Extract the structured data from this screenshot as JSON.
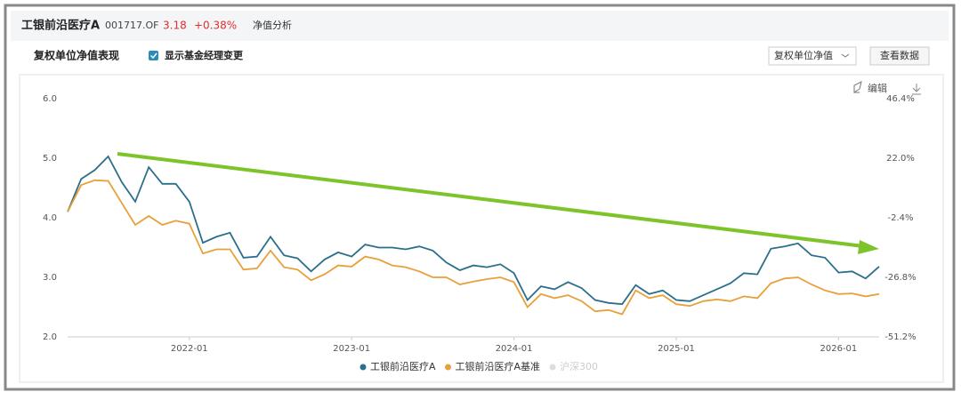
{
  "header": {
    "fund_name": "工银前沿医疗A",
    "code": "001717.OF",
    "nav": "3.18",
    "change": "+0.38%",
    "tab": "净值分析"
  },
  "toolbar": {
    "section_title": "复权单位净值表现",
    "checkbox_label": "显示基金经理变更",
    "dropdown": "复权单位净值",
    "button": "查看数据",
    "edit": "编辑"
  },
  "chart_data": {
    "type": "line",
    "x": [
      "2021-04",
      "2021-05",
      "2021-06",
      "2021-07",
      "2021-08",
      "2021-09",
      "2021-10",
      "2021-11",
      "2021-12",
      "2022-01",
      "2022-02",
      "2022-03",
      "2022-04",
      "2022-05",
      "2022-06",
      "2022-07",
      "2022-08",
      "2022-09",
      "2022-10",
      "2022-11",
      "2022-12",
      "2023-01",
      "2023-02",
      "2023-03",
      "2023-04",
      "2023-05",
      "2023-06",
      "2023-07",
      "2023-08",
      "2023-09",
      "2023-10",
      "2023-11",
      "2023-12",
      "2024-01",
      "2024-02",
      "2024-03",
      "2024-04",
      "2024-05",
      "2024-06",
      "2024-07",
      "2024-08",
      "2024-09",
      "2024-10",
      "2024-11",
      "2024-12",
      "2025-01",
      "2025-02",
      "2025-03",
      "2025-04",
      "2025-05",
      "2025-06",
      "2025-07",
      "2025-08",
      "2025-09",
      "2025-10",
      "2025-11",
      "2025-12",
      "2026-01",
      "2026-02",
      "2026-03",
      "2026-04"
    ],
    "xlim": [
      "2021-04",
      "2026-04"
    ],
    "xticks": [
      "2022-01",
      "2023-01",
      "2024-01",
      "2025-01",
      "2026-01"
    ],
    "series": [
      {
        "name": "工银前沿医疗A",
        "color": "#2b6f8a",
        "values": [
          4.1,
          4.65,
          4.8,
          5.03,
          4.6,
          4.27,
          4.85,
          4.57,
          4.57,
          4.27,
          3.58,
          3.68,
          3.75,
          3.33,
          3.35,
          3.68,
          3.37,
          3.32,
          3.1,
          3.3,
          3.42,
          3.35,
          3.55,
          3.5,
          3.5,
          3.47,
          3.52,
          3.45,
          3.25,
          3.12,
          3.2,
          3.17,
          3.22,
          3.07,
          2.62,
          2.85,
          2.8,
          2.92,
          2.82,
          2.62,
          2.57,
          2.55,
          2.87,
          2.72,
          2.78,
          2.62,
          2.6,
          2.7,
          2.8,
          2.9,
          3.07,
          3.05,
          3.48,
          3.52,
          3.57,
          3.37,
          3.33,
          3.08,
          3.1,
          2.98,
          3.18
        ]
      },
      {
        "name": "工银前沿医疗A基准",
        "color": "#e8a03a",
        "values": [
          4.1,
          4.55,
          4.63,
          4.62,
          4.25,
          3.88,
          4.03,
          3.88,
          3.95,
          3.9,
          3.4,
          3.47,
          3.47,
          3.13,
          3.15,
          3.45,
          3.17,
          3.13,
          2.95,
          3.05,
          3.2,
          3.18,
          3.35,
          3.3,
          3.2,
          3.17,
          3.1,
          3.0,
          3.0,
          2.88,
          2.93,
          2.97,
          3.0,
          2.92,
          2.5,
          2.72,
          2.65,
          2.7,
          2.6,
          2.43,
          2.45,
          2.38,
          2.78,
          2.65,
          2.7,
          2.55,
          2.52,
          2.6,
          2.63,
          2.6,
          2.68,
          2.65,
          2.9,
          2.98,
          3.0,
          2.88,
          2.78,
          2.72,
          2.73,
          2.68,
          2.72
        ]
      }
    ],
    "inactive_legend": "沪深300",
    "ylim": [
      2,
      6
    ],
    "yticks": [
      {
        "value": 2,
        "label": "2.0"
      },
      {
        "value": 3,
        "label": "3.0"
      },
      {
        "value": 4,
        "label": "4.0"
      },
      {
        "value": 5,
        "label": "5.0"
      },
      {
        "value": 6,
        "label": "6.0"
      }
    ],
    "y2lim": [
      -51.2,
      46.4
    ],
    "y2ticks": [
      {
        "value": -51.2,
        "label": "-51.2%"
      },
      {
        "value": -26.8,
        "label": "-26.8%"
      },
      {
        "value": -2.4,
        "label": "-2.4%"
      },
      {
        "value": 22,
        "label": "22.0%"
      },
      {
        "value": 46.4,
        "label": "46.4%"
      }
    ],
    "grid": false
  }
}
